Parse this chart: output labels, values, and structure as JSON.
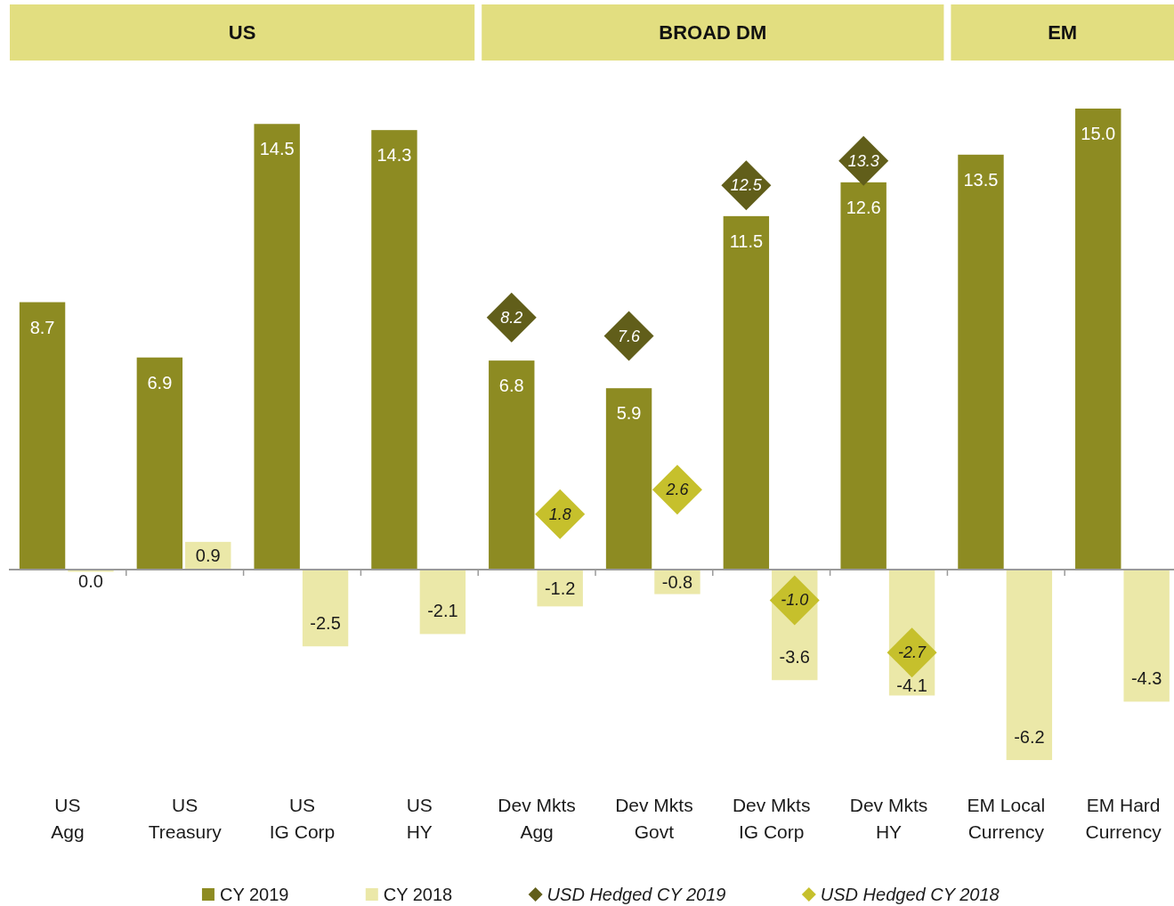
{
  "chart_data": {
    "type": "bar",
    "categories": [
      "US\nAgg",
      "US\nTreasury",
      "US\nIG Corp",
      "US\nHY",
      "Dev Mkts\nAgg",
      "Dev Mkts\nGovt",
      "Dev Mkts\nIG Corp",
      "Dev Mkts\nHY",
      "EM Local\nCurrency",
      "EM Hard\nCurrency"
    ],
    "series": [
      {
        "name": "CY 2019",
        "color": "#8d8b22",
        "values": [
          8.7,
          6.9,
          14.5,
          14.3,
          6.8,
          5.9,
          11.5,
          12.6,
          13.5,
          15.0
        ],
        "value_labels": [
          "8.7",
          "6.9",
          "14.5",
          "14.3",
          "6.8",
          "5.9",
          "11.5",
          "12.6",
          "13.5",
          "15.0"
        ]
      },
      {
        "name": "CY 2018",
        "color": "#ebe8a8",
        "values": [
          0.0,
          0.9,
          -2.5,
          -2.1,
          -1.2,
          -0.8,
          -3.6,
          -4.1,
          -6.2,
          -4.3
        ],
        "value_labels": [
          "0.0",
          "0.9",
          "-2.5",
          "-2.1",
          "-1.2",
          "-0.8",
          "-3.6",
          "-4.1",
          "-6.2",
          "-4.3"
        ]
      },
      {
        "name": "USD Hedged CY 2019",
        "type": "scatter",
        "color": "#615e1a",
        "values": [
          null,
          null,
          null,
          null,
          8.2,
          7.6,
          12.5,
          13.3,
          null,
          null
        ],
        "value_labels": [
          null,
          null,
          null,
          null,
          "8.2",
          "7.6",
          "12.5",
          "13.3",
          null,
          null
        ]
      },
      {
        "name": "USD Hedged CY 2018",
        "type": "scatter",
        "color": "#c6c02c",
        "values": [
          null,
          null,
          null,
          null,
          1.8,
          2.6,
          -1.0,
          -2.7,
          null,
          null
        ],
        "value_labels": [
          null,
          null,
          null,
          null,
          "1.8",
          "2.6",
          "-1.0",
          "-2.7",
          null,
          null
        ]
      }
    ],
    "annotations": [
      "US",
      "BROAD DM",
      "EM"
    ],
    "legend": "bottom",
    "marker": "diamond",
    "tick_labels": "x"
  }
}
